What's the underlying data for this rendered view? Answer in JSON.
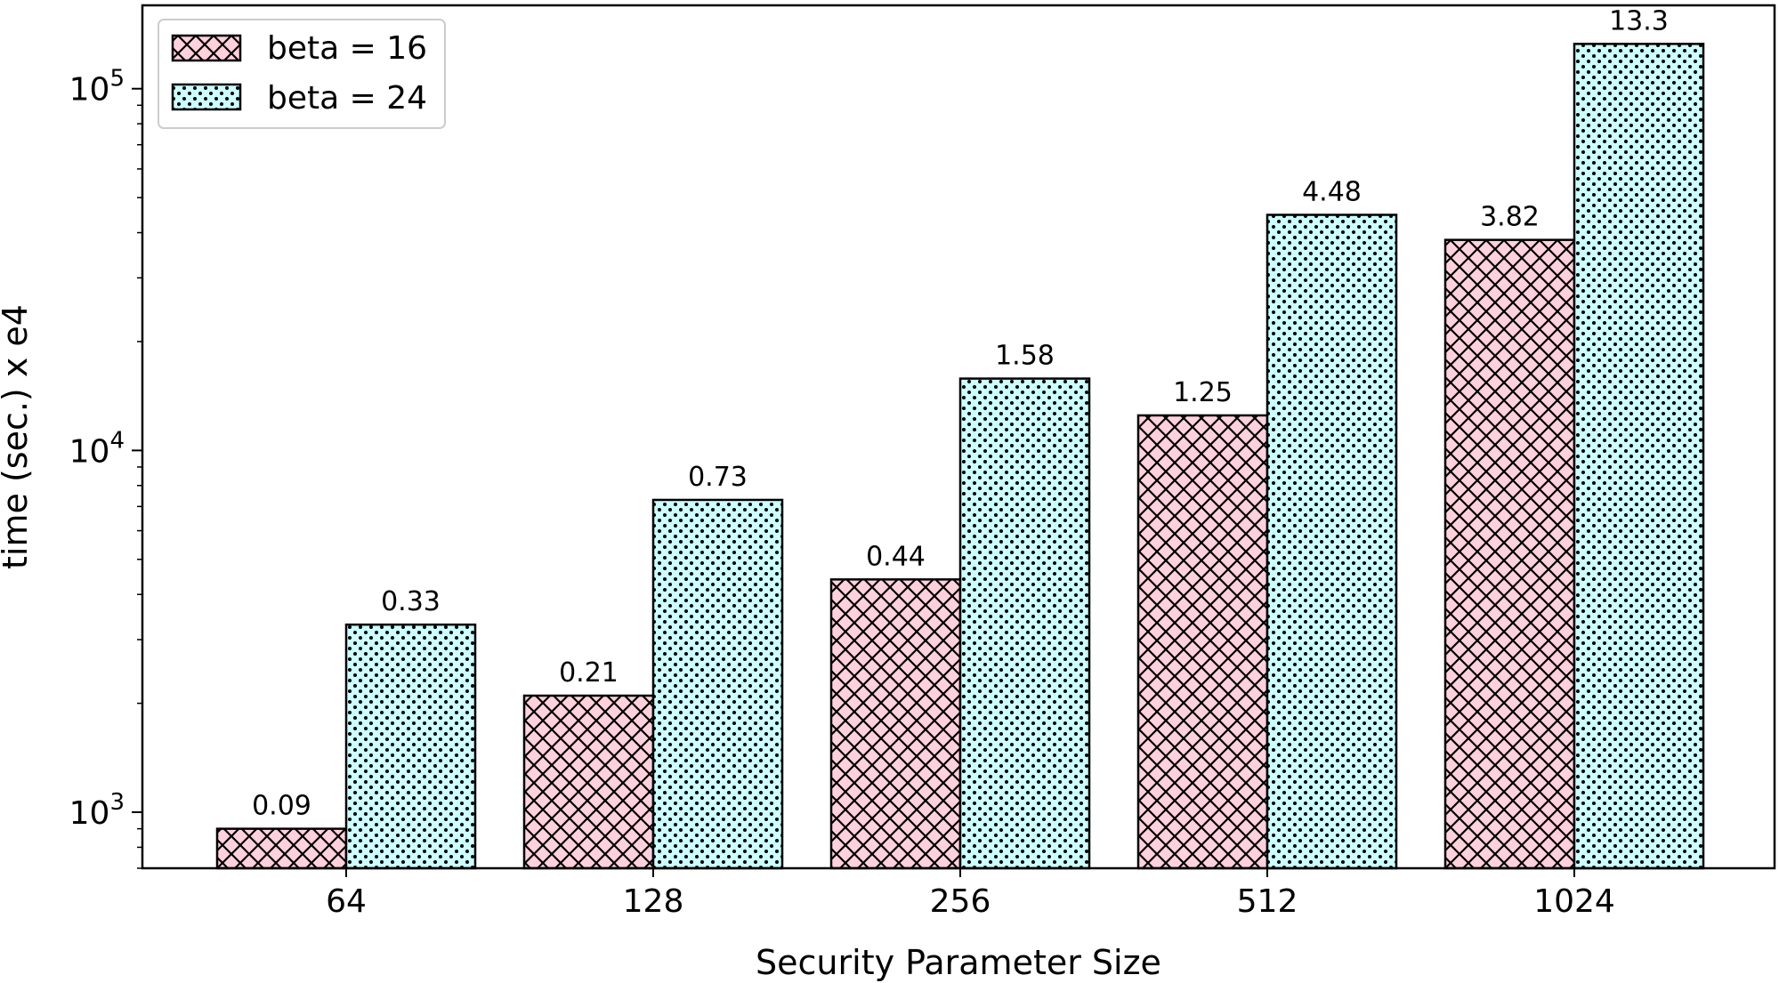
{
  "chart_data": {
    "type": "bar",
    "title": "",
    "xlabel": "Security Parameter Size",
    "ylabel": "time (sec.) x e4",
    "yscale": "log",
    "ylim": [
      700,
      170000
    ],
    "yticks": [
      {
        "value": 1000,
        "base": "10",
        "exp": "3"
      },
      {
        "value": 10000,
        "base": "10",
        "exp": "4"
      },
      {
        "value": 100000,
        "base": "10",
        "exp": "5"
      }
    ],
    "categories": [
      "64",
      "128",
      "256",
      "512",
      "1024"
    ],
    "series": [
      {
        "name": "beta = 16",
        "values": [
          900,
          2100,
          4400,
          12500,
          38200
        ],
        "labels": [
          "0.09",
          "0.21",
          "0.44",
          "1.25",
          "3.82"
        ],
        "color": "#ffd1dc",
        "hatch": "crosshatch"
      },
      {
        "name": "beta = 24",
        "values": [
          3300,
          7300,
          15800,
          44800,
          133000
        ],
        "labels": [
          "0.33",
          "0.73",
          "1.58",
          "4.48",
          "13.3"
        ],
        "color": "#ccffff",
        "hatch": "dots"
      }
    ],
    "legend": "top-left",
    "grid": false
  }
}
